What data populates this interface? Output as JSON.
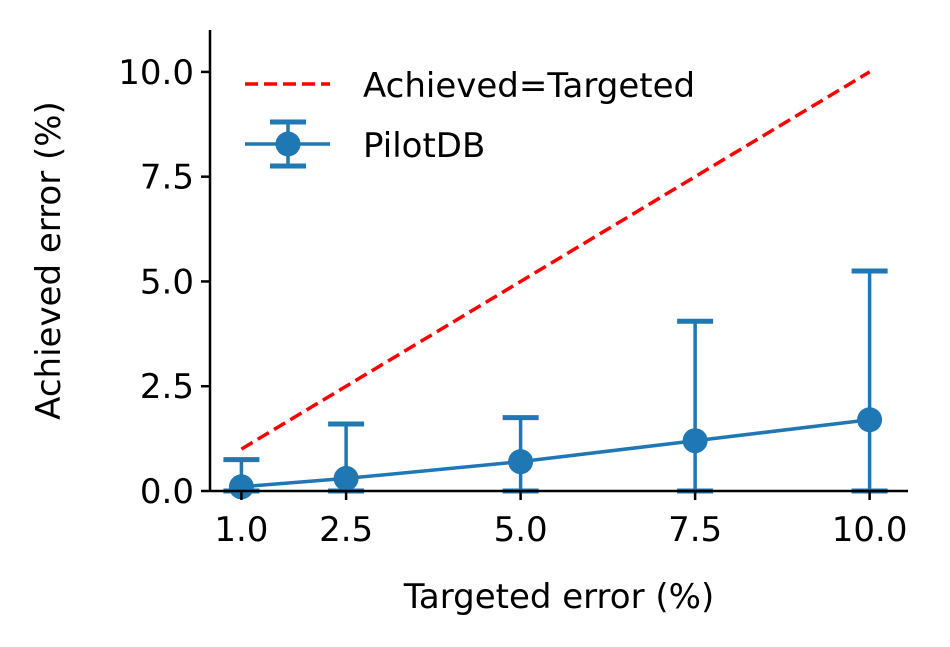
{
  "chart_data": {
    "type": "line",
    "xlabel": "Targeted error (%)",
    "ylabel": "Achieved error (%)",
    "xlim": [
      0.55,
      10.55
    ],
    "ylim": [
      0,
      11
    ],
    "x_ticks": [
      1.0,
      2.5,
      5.0,
      7.5,
      10.0
    ],
    "x_tick_labels": [
      "1.0",
      "2.5",
      "5.0",
      "7.5",
      "10.0"
    ],
    "y_ticks": [
      0.0,
      2.5,
      5.0,
      7.5,
      10.0
    ],
    "y_tick_labels": [
      "0.0",
      "2.5",
      "5.0",
      "7.5",
      "10.0"
    ],
    "grid": false,
    "legend_position": "top-left",
    "series": [
      {
        "name": "Achieved=Targeted",
        "style": "dashed",
        "color": "#ff0000",
        "x": [
          1.0,
          10.0
        ],
        "y": [
          1.0,
          10.0
        ]
      },
      {
        "name": "PilotDB",
        "style": "errorbar",
        "color": "#1f77b4",
        "x": [
          1.0,
          2.5,
          5.0,
          7.5,
          10.0
        ],
        "y": [
          0.1,
          0.3,
          0.7,
          1.2,
          1.7
        ],
        "y_lower": [
          0.0,
          0.0,
          0.0,
          0.0,
          0.0
        ],
        "y_upper": [
          0.75,
          1.6,
          1.75,
          4.05,
          5.25
        ]
      }
    ]
  }
}
